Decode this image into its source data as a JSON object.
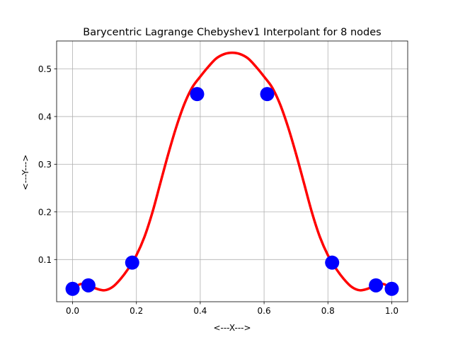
{
  "chart_data": {
    "type": "line",
    "title": "Barycentric Lagrange Chebyshev1 Interpolant for 8 nodes",
    "xlabel": "<---X--->",
    "ylabel": "<---Y--->",
    "xlim": [
      -0.05,
      1.05
    ],
    "ylim": [
      0.0115,
      0.5585
    ],
    "grid": true,
    "x_ticks": [
      0.0,
      0.2,
      0.4,
      0.6,
      0.8,
      1.0
    ],
    "x_tick_labels": [
      "0.0",
      "0.2",
      "0.4",
      "0.6",
      "0.8",
      "1.0"
    ],
    "y_ticks": [
      0.1,
      0.2,
      0.3,
      0.4,
      0.5
    ],
    "y_tick_labels": [
      "0.1",
      "0.2",
      "0.3",
      "0.4",
      "0.5"
    ],
    "series": [
      {
        "kind": "scatter",
        "color": "#0000ff",
        "x": [
          0.0,
          0.0495,
          0.1868,
          0.3902,
          0.6098,
          0.8132,
          0.9505,
          1.0
        ],
        "y": [
          0.0385,
          0.0458,
          0.0935,
          0.4471,
          0.4471,
          0.0935,
          0.0458,
          0.0385
        ]
      },
      {
        "kind": "line",
        "color": "#ff0000",
        "x": [
          0.0,
          0.025,
          0.05,
          0.075,
          0.1,
          0.125,
          0.15,
          0.175,
          0.2,
          0.225,
          0.25,
          0.275,
          0.3,
          0.325,
          0.35,
          0.375,
          0.4,
          0.425,
          0.45,
          0.475,
          0.5,
          0.525,
          0.55,
          0.575,
          0.6,
          0.625,
          0.65,
          0.675,
          0.7,
          0.725,
          0.75,
          0.775,
          0.8,
          0.825,
          0.85,
          0.875,
          0.9,
          0.925,
          0.95,
          0.975,
          1.0
        ],
        "y": [
          0.0385,
          0.0485,
          0.0458,
          0.0388,
          0.0355,
          0.0423,
          0.059,
          0.0813,
          0.1091,
          0.1472,
          0.1987,
          0.2604,
          0.3219,
          0.3782,
          0.4259,
          0.4612,
          0.4837,
          0.5042,
          0.5218,
          0.531,
          0.5339,
          0.531,
          0.5218,
          0.5042,
          0.4837,
          0.4612,
          0.4259,
          0.3782,
          0.3219,
          0.2604,
          0.1987,
          0.1472,
          0.1091,
          0.0813,
          0.059,
          0.0423,
          0.0355,
          0.0388,
          0.0458,
          0.0485,
          0.0385
        ]
      }
    ]
  }
}
